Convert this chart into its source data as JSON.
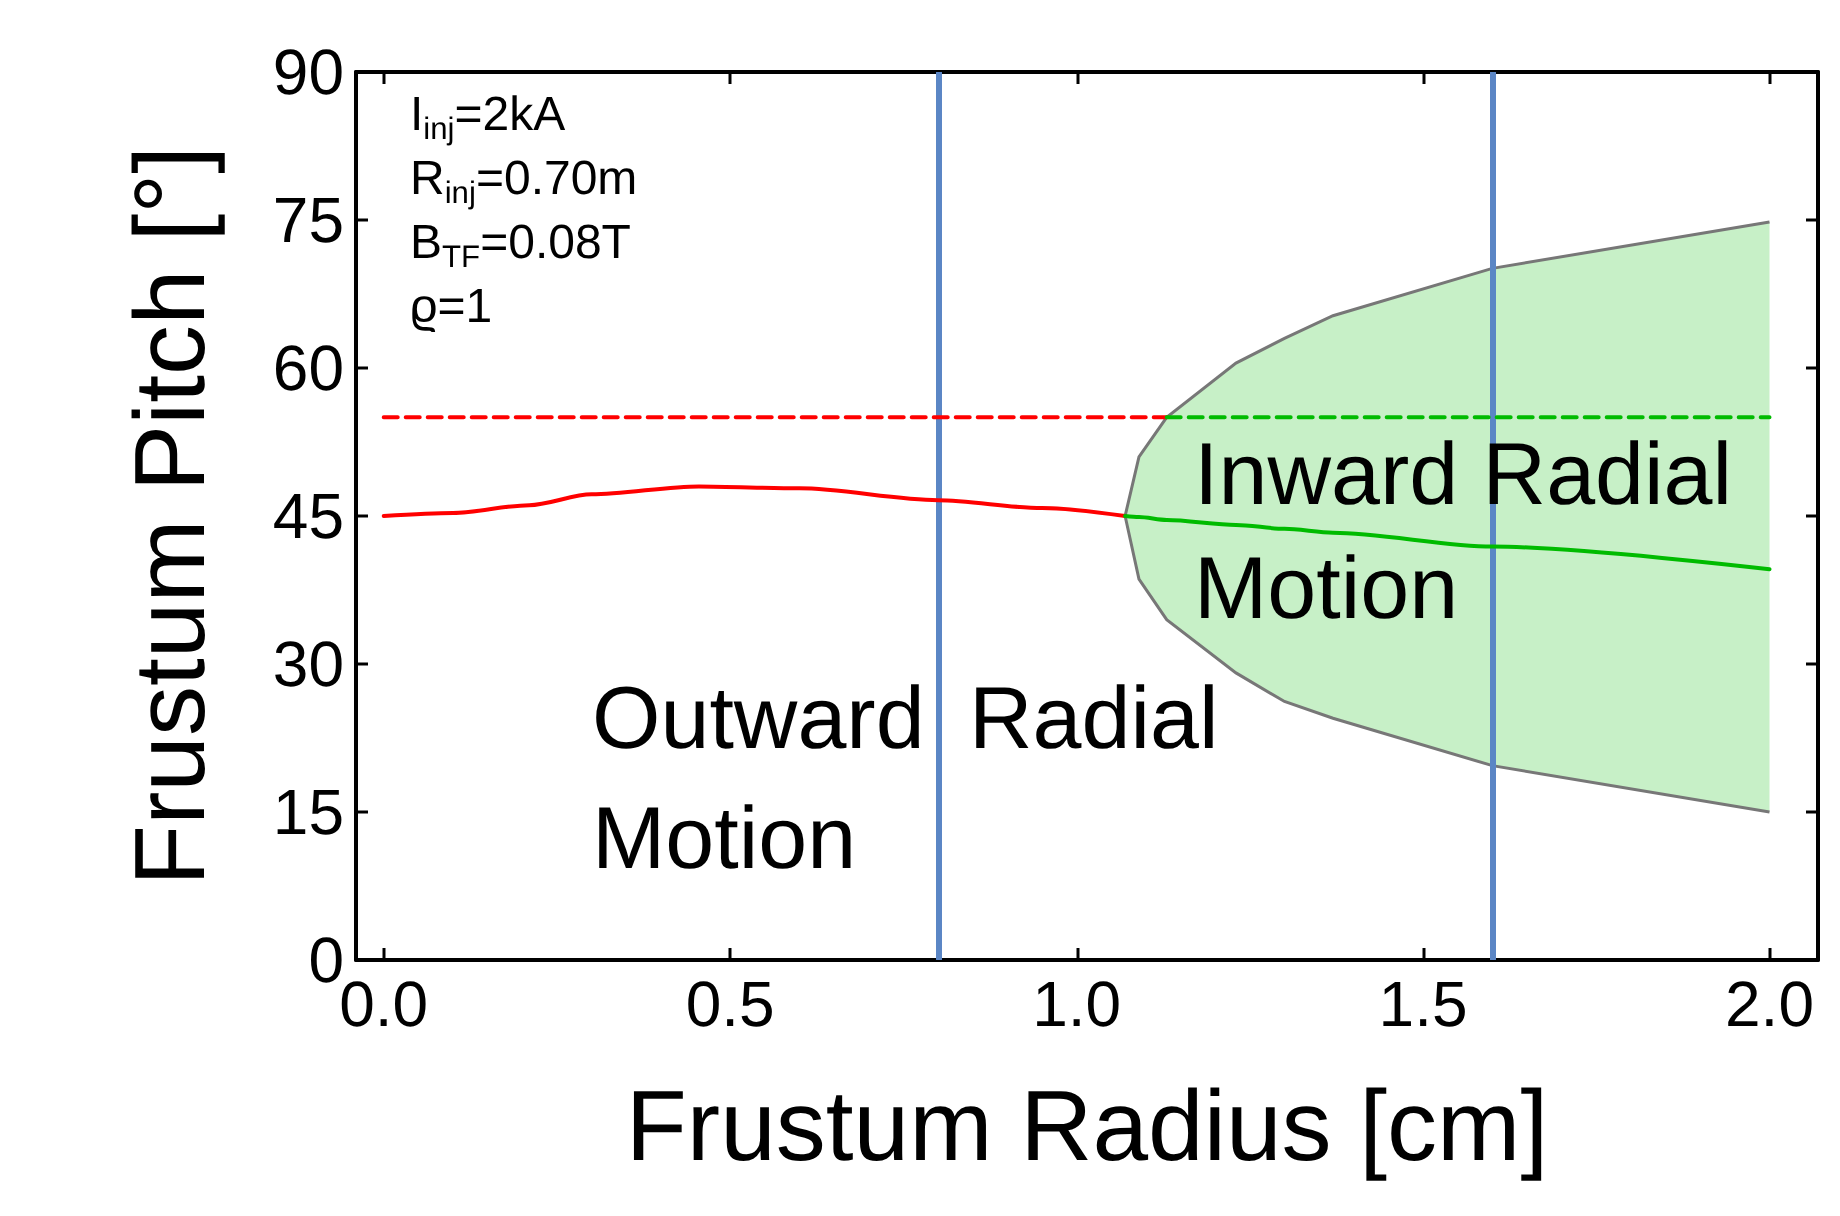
{
  "chart_data": {
    "type": "line",
    "xlabel": "Frustum Radius [cm]",
    "ylabel": "Frustum Pitch [°]",
    "xlim": [
      -0.04,
      2.07
    ],
    "ylim": [
      0,
      90
    ],
    "xticks": [
      {
        "value": 0,
        "label": "0.0"
      },
      {
        "value": 0.5,
        "label": "0.5"
      },
      {
        "value": 1,
        "label": "1.0"
      },
      {
        "value": 1.5,
        "label": "1.5"
      },
      {
        "value": 2,
        "label": "2.0"
      }
    ],
    "yticks": [
      0,
      15,
      30,
      45,
      60,
      75,
      90
    ],
    "grid": false,
    "line_style": "solid",
    "series": [
      {
        "color": "#ff0000",
        "x": [
          0,
          0.1,
          0.21,
          0.3,
          0.455,
          0.6,
          0.8,
          0.95,
          1.07
        ],
        "values": [
          45,
          45.3,
          46.1,
          47.2,
          48,
          47.8,
          46.6,
          45.8,
          45
        ]
      },
      {
        "color": "#00bb00",
        "x": [
          1.07,
          1.09,
          1.13,
          1.23,
          1.3,
          1.37,
          1.6,
          2.0
        ],
        "values": [
          45,
          44.9,
          44.6,
          44.1,
          43.7,
          43.3,
          41.9,
          39.6
        ],
        "lower": [
          45,
          38.6,
          34.5,
          29.1,
          26.2,
          24.5,
          19.7,
          15
        ],
        "upper": [
          45,
          51,
          55,
          60.5,
          63,
          65.3,
          70.1,
          74.8
        ]
      },
      {
        "color": "#ff0000",
        "line_style": "dashed",
        "x": [
          0,
          1.13
        ],
        "values": [
          55,
          55
        ]
      },
      {
        "color": "#00bb00",
        "line_style": "dashed",
        "x": [
          1.13,
          2.0
        ],
        "values": [
          55,
          55
        ]
      }
    ],
    "ref_lines": [
      {
        "axis": "x",
        "value": 0.8,
        "color": "#5b86c5"
      },
      {
        "axis": "x",
        "value": 1.6,
        "color": "#5b86c5"
      }
    ],
    "annotations": [
      "I$_{inj}$=2kA",
      "R$_{inj}$=0.70m",
      "B$_{TF}$=0.08T",
      "ϱ=1",
      "Outward Radial Motion",
      "Inward Radial Motion"
    ]
  }
}
